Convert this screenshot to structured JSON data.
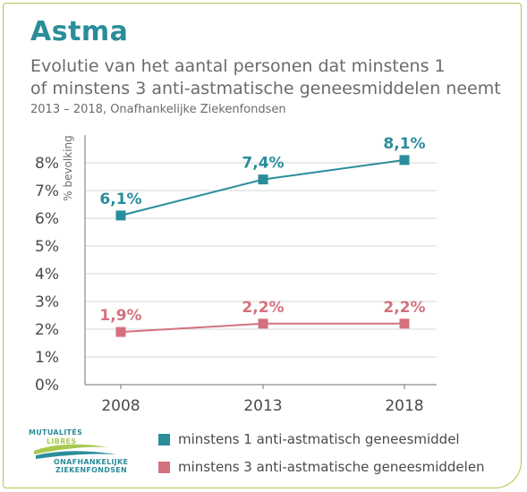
{
  "header": {
    "title": "Astma",
    "subtitle_line1": "Evolutie van het aantal personen dat minstens 1",
    "subtitle_line2": "of minstens 3 anti-astmatische geneesmiddelen neemt",
    "source": "2013 – 2018, Onafhankelijke Ziekenfondsen"
  },
  "logo": {
    "line1": "MUTUALITÉS",
    "line2": "LIBRES",
    "line3": "ONAFHANKELIJKE",
    "line4": "ZIEKENFONDSEN"
  },
  "colors": {
    "teal": "#2a8d9a",
    "pink": "#d4717e",
    "green": "#a8c94e",
    "axis": "#8a8a8a",
    "text": "#4a4a4a"
  },
  "chart_data": {
    "type": "line",
    "title": "Astma",
    "ylabel": "% bevolking",
    "x": [
      "2008",
      "2013",
      "2018"
    ],
    "ylim": [
      0,
      8
    ],
    "yticks": [
      "0%",
      "1%",
      "2%",
      "3%",
      "4%",
      "5%",
      "6%",
      "7%",
      "8%"
    ],
    "grid": true,
    "legend_position": "bottom",
    "series": [
      {
        "name": "minstens 1 anti-astmatisch geneesmiddel",
        "values": [
          6.1,
          7.4,
          8.1
        ],
        "labels": [
          "6,1%",
          "7,4%",
          "8,1%"
        ],
        "color": "#2a8d9a"
      },
      {
        "name": "minstens 3 anti-astmatische geneesmiddelen",
        "values": [
          1.9,
          2.2,
          2.2
        ],
        "labels": [
          "1,9%",
          "2,2%",
          "2,2%"
        ],
        "color": "#d4717e"
      }
    ]
  }
}
